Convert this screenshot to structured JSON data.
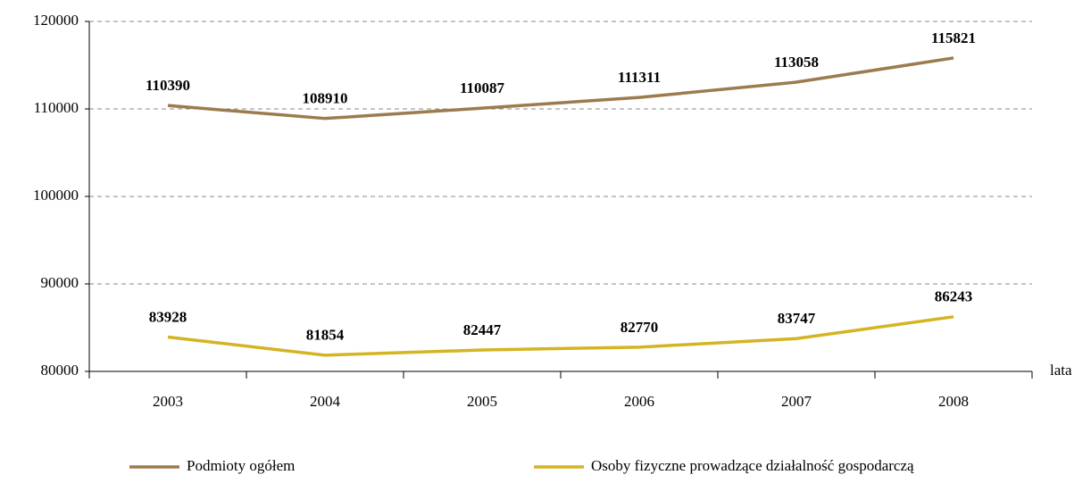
{
  "chart_data": {
    "type": "line",
    "categories": [
      "2003",
      "2004",
      "2005",
      "2006",
      "2007",
      "2008"
    ],
    "series": [
      {
        "name": "Podmioty ogółem",
        "color": "#9c7b4e",
        "values": [
          110390,
          108910,
          110087,
          111311,
          113058,
          115821
        ]
      },
      {
        "name": "Osoby fizyczne prowadzące działalność gospodarczą",
        "color": "#d4b423",
        "values": [
          83928,
          81854,
          82447,
          82770,
          83747,
          86243
        ]
      }
    ],
    "x_label": "lata",
    "ylim": [
      80000,
      120000
    ],
    "yticks": [
      80000,
      90000,
      100000,
      110000,
      120000
    ],
    "grid": true
  }
}
